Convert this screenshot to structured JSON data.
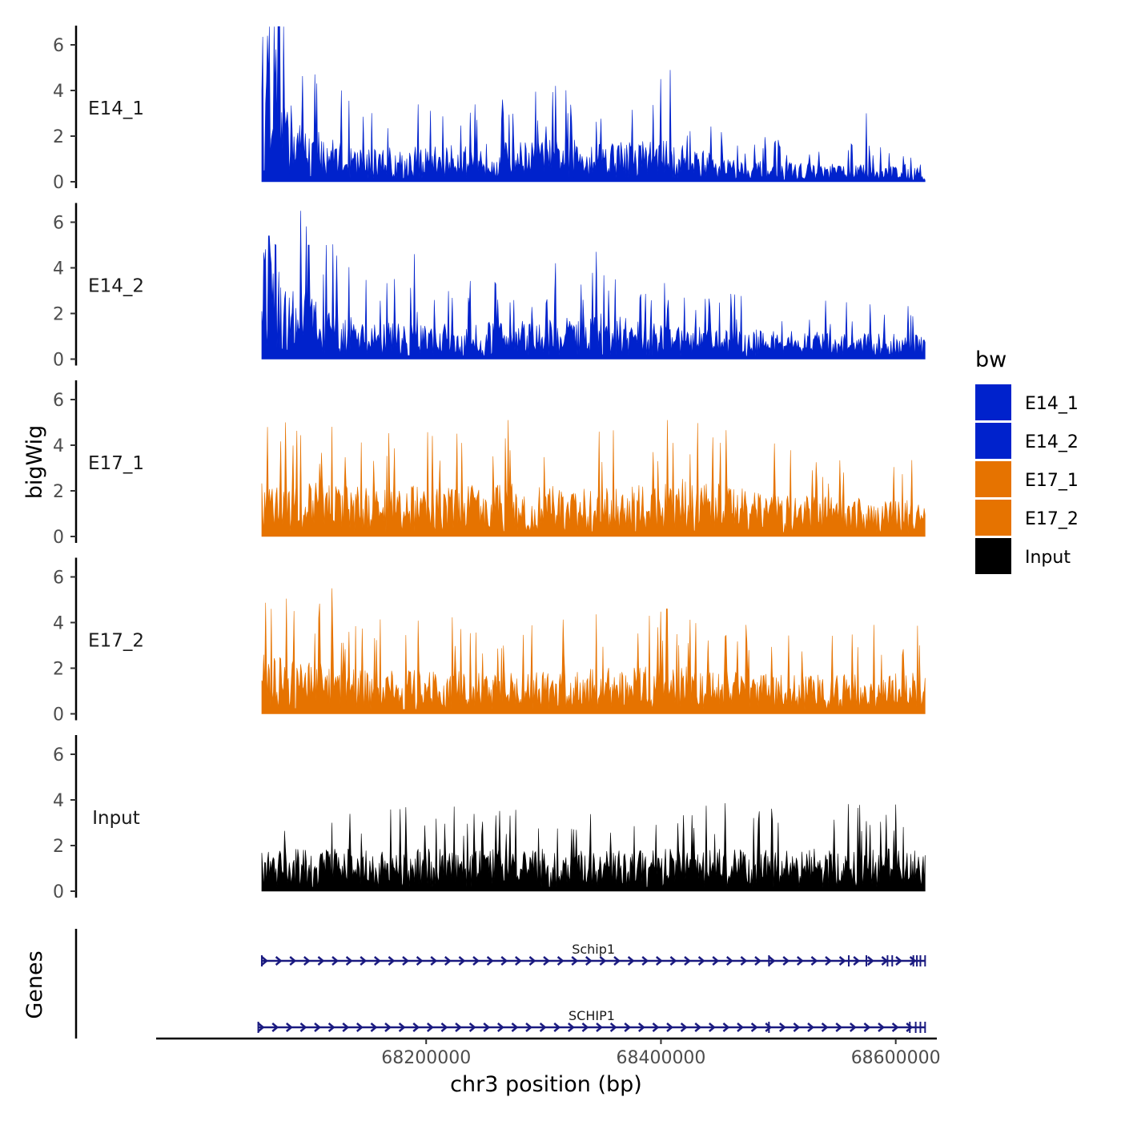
{
  "chart_data": {
    "type": "area",
    "ylabel": "bigWig",
    "xlabel": "chr3 position (bp)",
    "x_range": [
      68060000,
      68625000
    ],
    "x_limits": [
      67970000,
      68635000
    ],
    "x_ticks": [
      68200000,
      68400000,
      68600000
    ],
    "x_tick_labels": [
      "68200000",
      "68400000",
      "68600000"
    ],
    "y_range": [
      0,
      6.9
    ],
    "y_ticks": [
      0,
      2,
      4,
      6
    ],
    "y_tick_labels": [
      "0",
      "2",
      "4",
      "6"
    ],
    "legend": {
      "title": "bw",
      "position": "right",
      "entries": [
        {
          "label": "E14_1",
          "color": "#0022cc"
        },
        {
          "label": "E14_2",
          "color": "#0022cc"
        },
        {
          "label": "E17_1",
          "color": "#e67300"
        },
        {
          "label": "E17_2",
          "color": "#e67300"
        },
        {
          "label": "Input",
          "color": "#000000"
        }
      ]
    },
    "series": [
      {
        "name": "E14_1",
        "color": "#0022cc",
        "profile": {
          "x": [
            68060000,
            68070000,
            68075000,
            68090000,
            68110000,
            68140000,
            68200000,
            68300000,
            68400000,
            68470000,
            68550000,
            68625000
          ],
          "y": [
            3.0,
            4.2,
            3.2,
            1.8,
            1.4,
            1.0,
            1.0,
            1.2,
            1.2,
            0.6,
            0.5,
            0.5
          ]
        },
        "peaks": [
          {
            "x": 68065000,
            "y": 6.4
          },
          {
            "x": 68072000,
            "y": 5.8
          },
          {
            "x": 68095000,
            "y": 4.5
          },
          {
            "x": 68105000,
            "y": 4.7
          },
          {
            "x": 68128000,
            "y": 4.0
          },
          {
            "x": 68310000,
            "y": 4.2
          },
          {
            "x": 68400000,
            "y": 4.5
          },
          {
            "x": 68408000,
            "y": 4.9
          },
          {
            "x": 68575000,
            "y": 3.0
          }
        ]
      },
      {
        "name": "E14_2",
        "color": "#0022cc",
        "profile": {
          "x": [
            68060000,
            68070000,
            68085000,
            68100000,
            68140000,
            68200000,
            68300000,
            68350000,
            68400000,
            68500000,
            68625000
          ],
          "y": [
            3.0,
            3.5,
            2.4,
            1.8,
            1.2,
            1.0,
            1.1,
            1.3,
            1.0,
            0.8,
            0.7
          ]
        },
        "peaks": [
          {
            "x": 68066000,
            "y": 5.4
          },
          {
            "x": 68072000,
            "y": 5.0
          },
          {
            "x": 68093000,
            "y": 6.5
          },
          {
            "x": 68100000,
            "y": 5.0
          },
          {
            "x": 68115000,
            "y": 5.0
          },
          {
            "x": 68190000,
            "y": 4.6
          },
          {
            "x": 68310000,
            "y": 4.2
          },
          {
            "x": 68345000,
            "y": 4.7
          }
        ]
      },
      {
        "name": "E17_1",
        "color": "#e67300",
        "profile": {
          "x": [
            68060000,
            68080000,
            68150000,
            68270000,
            68320000,
            68400000,
            68420000,
            68500000,
            68625000
          ],
          "y": [
            1.7,
            1.6,
            1.4,
            1.5,
            1.4,
            1.5,
            1.7,
            1.2,
            1.0
          ]
        },
        "peaks": [
          {
            "x": 68065000,
            "y": 4.8
          },
          {
            "x": 68080000,
            "y": 5.0
          },
          {
            "x": 68120000,
            "y": 4.0
          },
          {
            "x": 68270000,
            "y": 5.1
          },
          {
            "x": 68410000,
            "y": 4.1
          },
          {
            "x": 68425000,
            "y": 3.6
          }
        ]
      },
      {
        "name": "E17_2",
        "color": "#e67300",
        "profile": {
          "x": [
            68060000,
            68080000,
            68150000,
            68300000,
            68400000,
            68500000,
            68625000
          ],
          "y": [
            2.0,
            1.6,
            1.3,
            1.2,
            1.4,
            1.1,
            1.2
          ]
        },
        "peaks": [
          {
            "x": 68068000,
            "y": 4.6
          },
          {
            "x": 68120000,
            "y": 5.5
          },
          {
            "x": 68390000,
            "y": 4.3
          },
          {
            "x": 68405000,
            "y": 4.6
          },
          {
            "x": 68620000,
            "y": 3.0
          }
        ]
      },
      {
        "name": "Input",
        "color": "#000000",
        "profile": {
          "x": [
            68060000,
            68625000
          ],
          "y": [
            1.2,
            1.2
          ]
        },
        "peaks": [
          {
            "x": 68120000,
            "y": 3.0
          },
          {
            "x": 68500000,
            "y": 3.0
          },
          {
            "x": 68600000,
            "y": 3.8
          }
        ]
      }
    ],
    "genes_track": {
      "label": "Genes",
      "color": "#1a1a80",
      "genes": [
        {
          "name": "Schip1",
          "start": 68060000,
          "end": 68625000,
          "strand": "+",
          "exons": [
            68492000,
            68560000,
            68575000,
            68593000,
            68597000,
            68615000,
            68618000,
            68621000
          ]
        },
        {
          "name": "SCHIP1",
          "start": 68057000,
          "end": 68625000,
          "strand": "+",
          "exons": [
            68492000,
            68612000,
            68617000,
            68621000
          ]
        }
      ]
    }
  }
}
